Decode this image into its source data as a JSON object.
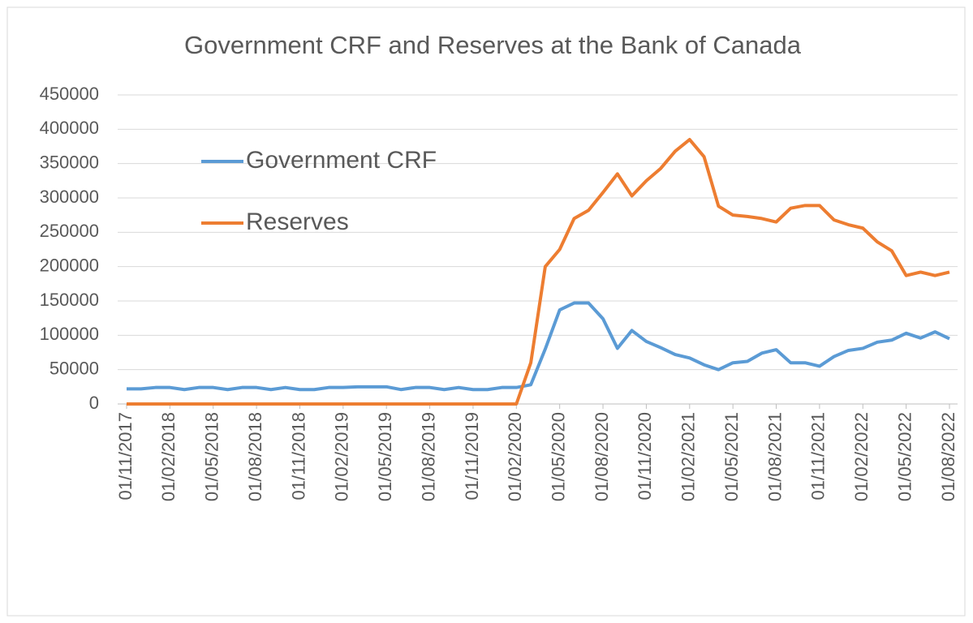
{
  "chart_data": {
    "type": "line",
    "title": "Government  CRF and Reserves  at the Bank of Canada",
    "categories": [
      "01/11/2017",
      null,
      null,
      "01/02/2018",
      null,
      null,
      "01/05/2018",
      null,
      null,
      "01/08/2018",
      null,
      null,
      "01/11/2018",
      null,
      null,
      "01/02/2019",
      null,
      null,
      "01/05/2019",
      null,
      null,
      "01/08/2019",
      null,
      null,
      "01/11/2019",
      null,
      null,
      "01/02/2020",
      null,
      null,
      "01/05/2020",
      null,
      null,
      "01/08/2020",
      null,
      null,
      "01/11/2020",
      null,
      null,
      "01/02/2021",
      null,
      null,
      "01/05/2021",
      null,
      null,
      "01/08/2021",
      null,
      null,
      "01/11/2021",
      null,
      null,
      "01/02/2022",
      null,
      null,
      "01/05/2022",
      null,
      null,
      "01/08/2022"
    ],
    "series": [
      {
        "name": "Government CRF",
        "color": "#5b9bd5",
        "values": [
          22000,
          22000,
          24000,
          24000,
          21000,
          24000,
          24000,
          21000,
          24000,
          24000,
          21000,
          24000,
          21000,
          21000,
          24000,
          24000,
          25000,
          25000,
          25000,
          21000,
          24000,
          24000,
          21000,
          24000,
          21000,
          21000,
          24000,
          24000,
          28000,
          80000,
          137000,
          147000,
          147000,
          124000,
          81000,
          107000,
          91000,
          82000,
          72000,
          67000,
          57000,
          50000,
          60000,
          62000,
          74000,
          79000,
          60000,
          60000,
          55000,
          69000,
          78000,
          81000,
          90000,
          93000,
          103000,
          96000,
          105000,
          95000
        ]
      },
      {
        "name": "Reserves",
        "color": "#ed7d31",
        "values": [
          0,
          0,
          0,
          0,
          0,
          0,
          0,
          0,
          0,
          0,
          0,
          0,
          0,
          0,
          0,
          0,
          0,
          0,
          0,
          0,
          0,
          0,
          0,
          0,
          0,
          0,
          0,
          0,
          60000,
          200000,
          225000,
          270000,
          282000,
          308000,
          335000,
          303000,
          325000,
          343000,
          368000,
          385000,
          360000,
          288000,
          275000,
          273000,
          270000,
          265000,
          285000,
          289000,
          289000,
          268000,
          261000,
          256000,
          236000,
          223000,
          187000,
          192000,
          187000,
          192000
        ]
      }
    ],
    "ylim": [
      0,
      450000
    ],
    "yticks": [
      0,
      50000,
      100000,
      150000,
      200000,
      250000,
      300000,
      350000,
      400000,
      450000
    ],
    "grid": true,
    "legend": "upper left"
  }
}
